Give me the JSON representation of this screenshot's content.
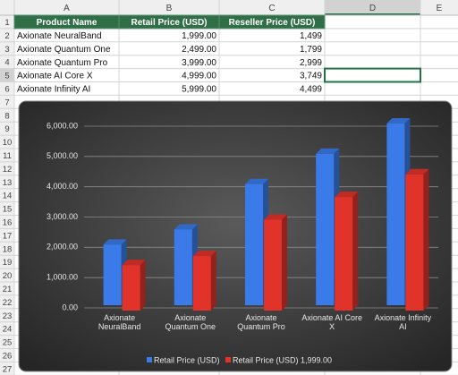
{
  "spreadsheet": {
    "columns": [
      "A",
      "B",
      "C",
      "D",
      "E"
    ],
    "row_numbers": [
      1,
      2,
      3,
      4,
      5,
      6,
      7,
      8,
      9,
      10,
      11,
      12,
      13,
      14,
      15,
      16,
      17,
      18,
      19,
      20,
      21,
      22,
      23,
      24,
      25,
      26,
      27
    ],
    "table": {
      "header": [
        "Product Name",
        "Retail Price (USD)",
        "Reseller Price (USD)"
      ],
      "rows": [
        [
          "Axionate NeuralBand",
          "1,999.00",
          "1,499"
        ],
        [
          "Axionate Quantum One",
          "2,499.00",
          "1,799"
        ],
        [
          "Axionate Quantum Pro",
          "3,999.00",
          "2,999"
        ],
        [
          "Axionate AI Core X",
          "4,999.00",
          "3,749"
        ],
        [
          "Axionate Infinity AI",
          "5,999.00",
          "4,499"
        ]
      ]
    }
  },
  "chart_data": {
    "type": "bar3d",
    "categories": [
      "Axionate NeuralBand",
      "Axionate Quantum One",
      "Axionate Quantum Pro",
      "Axionate AI Core X",
      "Axionate Infinity AI"
    ],
    "series": [
      {
        "name": "Retail Price (USD)",
        "color": "#3b7be9",
        "values": [
          1999,
          2499,
          3999,
          4999,
          5999
        ]
      },
      {
        "name": "Retail Price (USD) 1,999.00",
        "color": "#e2332b",
        "values": [
          1499,
          1799,
          2999,
          3749,
          4499
        ]
      }
    ],
    "ylim": [
      0,
      6000
    ],
    "yticks": [
      {
        "value": 0,
        "label": "0.00"
      },
      {
        "value": 1000,
        "label": "1,000.00"
      },
      {
        "value": 2000,
        "label": "2,000.00"
      },
      {
        "value": 3000,
        "label": "3,000.00"
      },
      {
        "value": 4000,
        "label": "4,000.00"
      },
      {
        "value": 5000,
        "label": "5,000.00"
      },
      {
        "value": 6000,
        "label": "6,000.00"
      }
    ],
    "grid": true,
    "legend": "bottom"
  }
}
